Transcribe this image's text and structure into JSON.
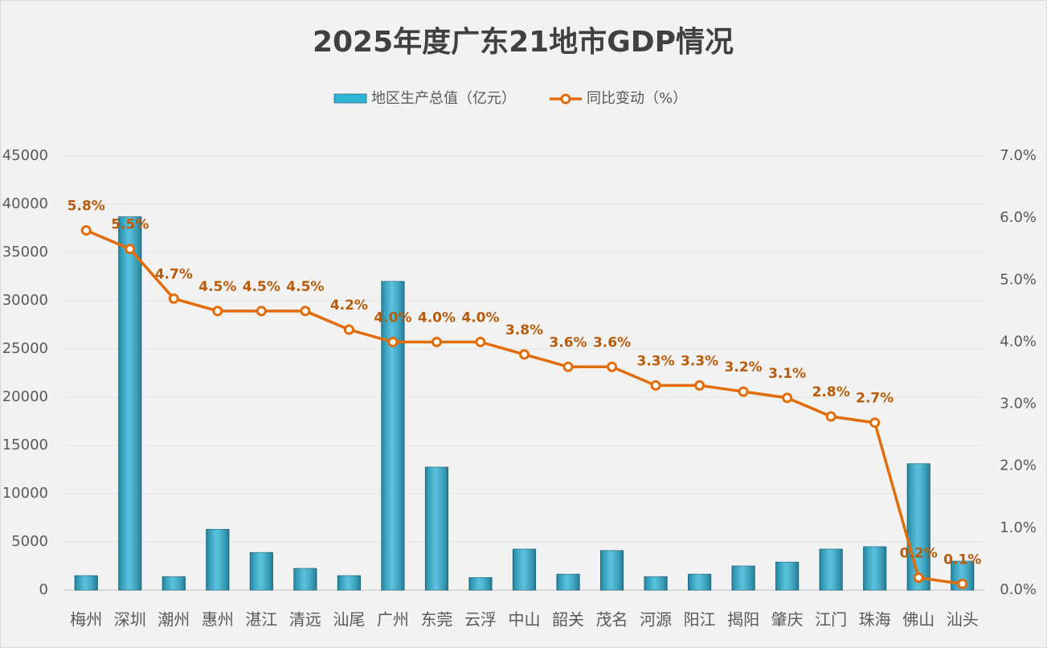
{
  "chart_data": {
    "type": "bar_line",
    "title": "2025年度广东21地市GDP情况",
    "categories": [
      "梅州",
      "深圳",
      "潮州",
      "惠州",
      "湛江",
      "清远",
      "汕尾",
      "广州",
      "东莞",
      "云浮",
      "中山",
      "韶关",
      "茂名",
      "河源",
      "阳江",
      "揭阳",
      "肇庆",
      "江门",
      "珠海",
      "佛山",
      "汕头"
    ],
    "series": [
      {
        "name": "地区生产总值（亿元）",
        "type": "bar",
        "color": "#2fb3d6",
        "values": [
          1500,
          38700,
          1400,
          6300,
          3900,
          2250,
          1500,
          32000,
          12750,
          1300,
          4250,
          1650,
          4100,
          1400,
          1650,
          2500,
          2900,
          4250,
          4500,
          13100,
          3000
        ]
      },
      {
        "name": "同比变动（%）",
        "type": "line",
        "axis": "y2",
        "color": "#e36c0a",
        "label_color": "#b85c0b",
        "values": [
          5.8,
          5.5,
          4.7,
          4.5,
          4.5,
          4.5,
          4.2,
          4.0,
          4.0,
          4.0,
          3.8,
          3.6,
          3.6,
          3.3,
          3.3,
          3.2,
          3.1,
          2.8,
          2.7,
          0.2,
          0.1
        ],
        "value_labels": [
          "5.8%",
          "5.5%",
          "4.7%",
          "4.5%",
          "4.5%",
          "4.5%",
          "4.2%",
          "4.0%",
          "4.0%",
          "4.0%",
          "3.8%",
          "3.6%",
          "3.6%",
          "3.3%",
          "3.3%",
          "3.2%",
          "3.1%",
          "2.8%",
          "2.7%",
          "0.2%",
          "0.1%"
        ]
      }
    ],
    "ylim": [
      0,
      45000
    ],
    "yticks": [
      0,
      5000,
      10000,
      15000,
      20000,
      25000,
      30000,
      35000,
      40000,
      45000
    ],
    "y2lim": [
      0,
      7
    ],
    "y2ticks": [
      {
        "value": 0,
        "label": "0.0%"
      },
      {
        "value": 1,
        "label": "1.0%"
      },
      {
        "value": 2,
        "label": "2.0%"
      },
      {
        "value": 3,
        "label": "3.0%"
      },
      {
        "value": 4,
        "label": "4.0%"
      },
      {
        "value": 5,
        "label": "5.0%"
      },
      {
        "value": 6,
        "label": "6.0%"
      },
      {
        "value": 7,
        "label": "7.0%"
      }
    ],
    "grid": true,
    "legend": "top"
  }
}
